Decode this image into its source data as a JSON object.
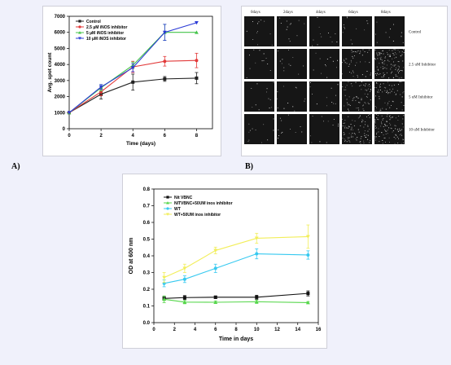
{
  "labels": {
    "a": "A)",
    "b": "B)"
  },
  "micrograph": {
    "columns": [
      "0days",
      "2days",
      "4days",
      "6days",
      "8days"
    ],
    "rows": [
      "Control",
      "2.5 uM Inhibitor",
      "5 uM Inhibitor",
      "10 uM Inhibitor"
    ],
    "density": [
      [
        0,
        0,
        0,
        0,
        0
      ],
      [
        0,
        0,
        0,
        0.2,
        0.6
      ],
      [
        0,
        0,
        0,
        0.3,
        0.3
      ],
      [
        0,
        0,
        0,
        0.4,
        0.5
      ]
    ]
  },
  "chart_data": [
    {
      "type": "line",
      "xlabel": "Time (days)",
      "ylabel": "Avg. spot count",
      "x": [
        0,
        2,
        4,
        6,
        8
      ],
      "xticks": [
        0,
        2,
        4,
        6,
        8
      ],
      "yticks": [
        0,
        1000,
        2000,
        3000,
        4000,
        5000,
        6000,
        7000
      ],
      "xlim": [
        0,
        9
      ],
      "ylim": [
        0,
        7000
      ],
      "legend": "top-left",
      "series": [
        {
          "name": "Control",
          "color": "#222222",
          "marker": "square",
          "values": [
            1000,
            2150,
            2900,
            3100,
            3150
          ],
          "err": [
            0,
            300,
            500,
            150,
            350
          ]
        },
        {
          "name": "2.5 µM iNOS inhibitor",
          "color": "#e23a3a",
          "marker": "circle",
          "values": [
            1000,
            2300,
            3850,
            4200,
            4250
          ],
          "err": [
            0,
            250,
            350,
            300,
            450
          ]
        },
        {
          "name": "5 µM iNOS inhibitor",
          "color": "#44c44a",
          "marker": "triangle-up",
          "values": [
            1000,
            2550,
            3950,
            6000,
            6000
          ],
          "err": [
            0,
            200,
            200,
            500,
            0
          ]
        },
        {
          "name": "10 µM iNOS inhibitor",
          "color": "#2b3bd6",
          "marker": "triangle-down",
          "values": [
            1000,
            2600,
            3800,
            6000,
            6600
          ],
          "err": [
            0,
            150,
            250,
            500,
            0
          ]
        }
      ]
    },
    {
      "type": "line",
      "xlabel": "Time in days",
      "ylabel": "OD at 600 nm",
      "x": [
        1,
        3,
        6,
        10,
        15
      ],
      "xticks": [
        0,
        2,
        4,
        6,
        8,
        10,
        12,
        14,
        16
      ],
      "yticks": [
        0.0,
        0.1,
        0.2,
        0.3,
        0.4,
        0.5,
        0.6,
        0.7,
        0.8
      ],
      "xlim": [
        0,
        16
      ],
      "ylim": [
        0,
        0.8
      ],
      "legend": "top-left",
      "series": [
        {
          "name": "Nit VBNC",
          "color": "#111111",
          "marker": "square",
          "values": [
            0.145,
            0.15,
            0.152,
            0.152,
            0.175
          ],
          "err": [
            0.01,
            0.012,
            0.008,
            0.012,
            0.015
          ]
        },
        {
          "name": "NITVBNC+50UM inos inhibitor",
          "color": "#55d64a",
          "marker": "triangle-up",
          "values": [
            0.14,
            0.123,
            0.122,
            0.125,
            0.12
          ],
          "err": [
            0.02,
            0.01,
            0.008,
            0.01,
            0.006
          ]
        },
        {
          "name": "WT",
          "color": "#36c9f0",
          "marker": "circle",
          "values": [
            0.235,
            0.26,
            0.325,
            0.412,
            0.405
          ],
          "err": [
            0.02,
            0.02,
            0.025,
            0.03,
            0.025
          ]
        },
        {
          "name": "WT+50UM inos inhibitor",
          "color": "#f2ee5a",
          "marker": "triangle-down",
          "values": [
            0.27,
            0.325,
            0.432,
            0.505,
            0.515
          ],
          "err": [
            0.03,
            0.025,
            0.02,
            0.03,
            0.07
          ]
        }
      ]
    }
  ]
}
